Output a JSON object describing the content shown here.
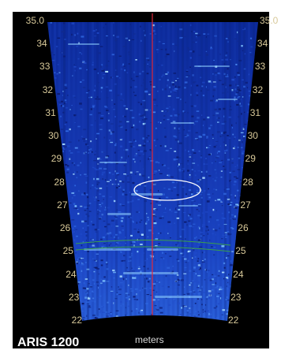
{
  "device": {
    "name": "ARIS 1200"
  },
  "axis": {
    "unit": "meters",
    "left_labels": [
      "35.0",
      "34",
      "33",
      "32",
      "31",
      "30",
      "29",
      "28",
      "27",
      "26",
      "25",
      "24",
      "23",
      "22"
    ],
    "right_labels": [
      "35.0",
      "34",
      "33",
      "32",
      "31",
      "30",
      "29",
      "28",
      "27",
      "26",
      "25",
      "24",
      "23",
      "22"
    ]
  },
  "colors": {
    "background": "#000000",
    "sonar_dark": "#0a1a6e",
    "sonar_mid": "#1f49c8",
    "sonar_bright": "#7fc4ff",
    "label": "#d8c99a",
    "center_line": "#e0283a",
    "range_arc": "#3aa04a",
    "target_ellipse": "#ffffff"
  }
}
